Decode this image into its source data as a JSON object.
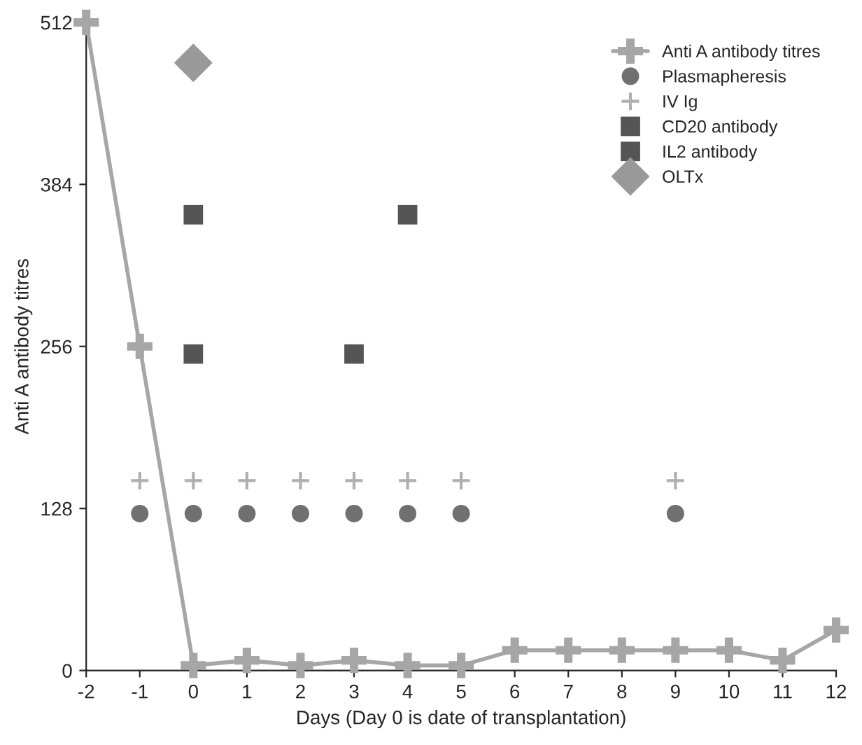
{
  "chart_data": {
    "type": "line",
    "xlabel": "Days (Day 0 is date of transplantation)",
    "ylabel": "Anti A antibody titres",
    "xlim": [
      -2,
      12
    ],
    "xticks": [
      -2,
      -1,
      0,
      1,
      2,
      3,
      4,
      5,
      6,
      7,
      8,
      9,
      10,
      11,
      12
    ],
    "ylim": [
      0,
      512
    ],
    "yticks": [
      0,
      128,
      256,
      384,
      512
    ],
    "grid": false,
    "legend": "top right",
    "series": [
      {
        "name": "Anti A antibody titres",
        "marker": "cross",
        "color": "#a6a6a6",
        "x": [
          -2,
          -1,
          0,
          1,
          2,
          3,
          4,
          5,
          6,
          7,
          8,
          9,
          10,
          11,
          12
        ],
        "values": [
          512,
          256,
          4,
          8,
          4,
          8,
          4,
          4,
          16,
          16,
          16,
          16,
          16,
          8,
          32
        ]
      },
      {
        "name": "Plasmapheresis",
        "type": "scatter",
        "marker": "circle",
        "color": "#707070",
        "x": [
          -1,
          0,
          1,
          2,
          3,
          4,
          5,
          9
        ],
        "values": [
          124,
          124,
          124,
          124,
          124,
          124,
          124,
          124
        ]
      },
      {
        "name": "IV Ig",
        "type": "scatter",
        "marker": "plus",
        "color": "#b0b0b0",
        "x": [
          -1,
          0,
          1,
          2,
          3,
          4,
          5,
          9
        ],
        "values": [
          150,
          150,
          150,
          150,
          150,
          150,
          150,
          150
        ]
      },
      {
        "name": "CD20 antibody",
        "type": "scatter",
        "marker": "square",
        "color": "#555555",
        "x": [
          0,
          4
        ],
        "values": [
          360,
          360
        ]
      },
      {
        "name": "IL2 antibody",
        "type": "scatter",
        "marker": "square",
        "color": "#555555",
        "x": [
          0,
          3
        ],
        "values": [
          250,
          250
        ]
      },
      {
        "name": "OLTx",
        "type": "scatter",
        "marker": "diamond",
        "color": "#999999",
        "x": [
          0
        ],
        "values": [
          480
        ]
      }
    ]
  }
}
